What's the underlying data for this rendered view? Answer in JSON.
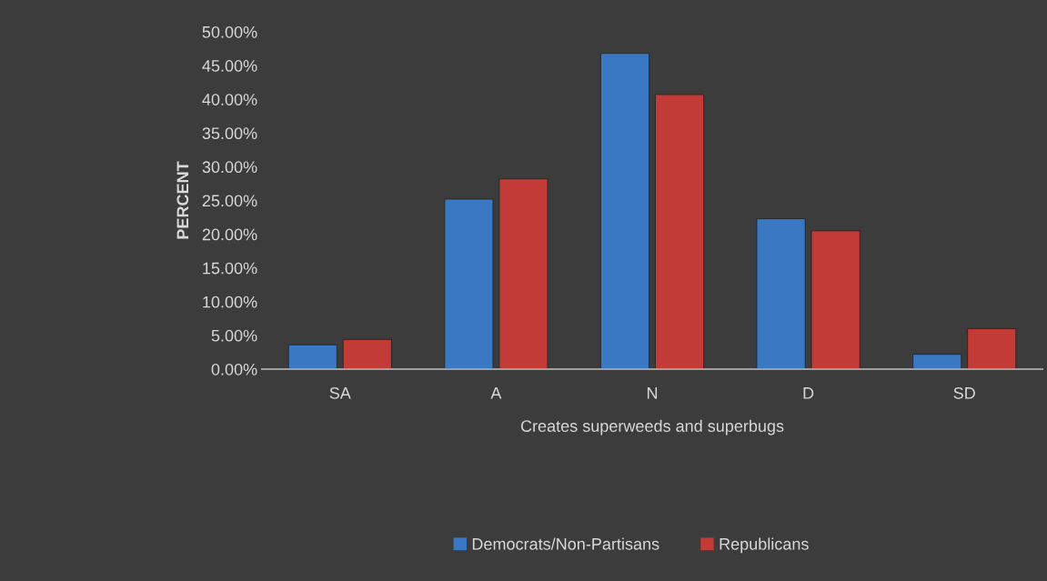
{
  "chart_data": {
    "type": "bar",
    "xlabel": "Creates superweeds and superbugs",
    "ylabel": "PERCENT",
    "categories": [
      "SA",
      "A",
      "N",
      "D",
      "SD"
    ],
    "series": [
      {
        "name": "Democrats/Non-Partisans",
        "color": "#3a78c3",
        "values": [
          3.6,
          25.2,
          46.8,
          22.3,
          2.2
        ]
      },
      {
        "name": "Republicans",
        "color": "#c33b36",
        "values": [
          4.4,
          28.2,
          40.7,
          20.5,
          6.0
        ]
      }
    ],
    "ylim": [
      0,
      50
    ],
    "yticks": [
      {
        "value": 0,
        "label": "0.00%"
      },
      {
        "value": 5,
        "label": "5.00%"
      },
      {
        "value": 10,
        "label": "10.00%"
      },
      {
        "value": 15,
        "label": "15.00%"
      },
      {
        "value": 20,
        "label": "20.00%"
      },
      {
        "value": 25,
        "label": "25.00%"
      },
      {
        "value": 30,
        "label": "30.00%"
      },
      {
        "value": 35,
        "label": "35.00%"
      },
      {
        "value": 40,
        "label": "40.00%"
      },
      {
        "value": 45,
        "label": "45.00%"
      },
      {
        "value": 50,
        "label": "50.00%"
      }
    ],
    "grid": false,
    "legend": "bottom"
  }
}
